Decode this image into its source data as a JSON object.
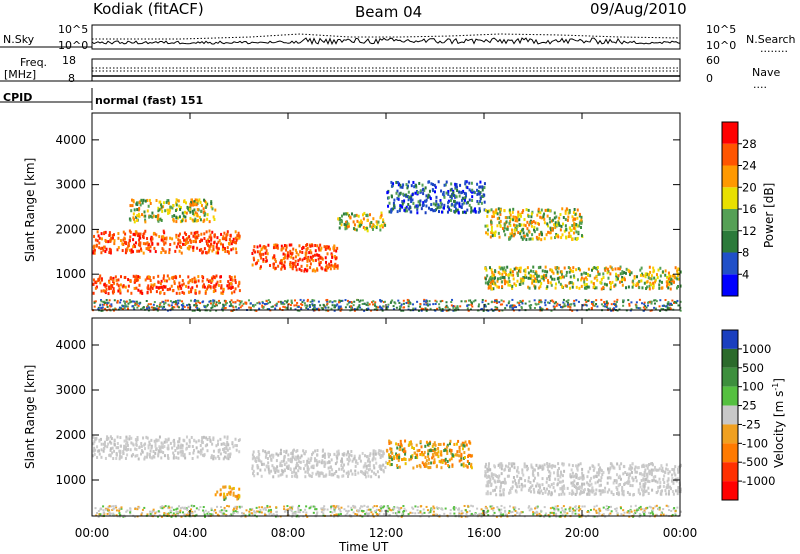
{
  "header": {
    "station": "Kodiak (fitACF)",
    "beam": "Beam 04",
    "date": "09/Aug/2010"
  },
  "noise_panel": {
    "left_label": "N.Sky",
    "right_label": "N.Search",
    "ticks_left": [
      "10^5",
      "10^0"
    ],
    "ticks_right": [
      "10^5",
      "10^0"
    ],
    "right_legend_symbol": "........"
  },
  "freq_panel": {
    "left_label_1": "Freq.",
    "left_label_2": "[MHz]",
    "right_label": "Nave",
    "ticks_left": [
      "18",
      "8"
    ],
    "ticks_right": [
      "60",
      "0"
    ],
    "right_legend_symbol": "...."
  },
  "cpid": {
    "label": "CPID",
    "value": "normal (fast) 151"
  },
  "x_axis": {
    "label": "Time UT",
    "ticks": [
      "00:00",
      "04:00",
      "08:00",
      "12:00",
      "16:00",
      "20:00",
      "00:00"
    ]
  },
  "chart_data": [
    {
      "type": "heatmap",
      "name": "power",
      "ylabel": "Slant Range [km]",
      "yticks": [
        "1000",
        "2000",
        "3000",
        "4000"
      ],
      "ylim": [
        200,
        4600
      ],
      "xlim_hours": [
        0,
        24
      ],
      "colorbar": {
        "label": "Power [dB]",
        "ticks": [
          "4",
          "8",
          "12",
          "16",
          "20",
          "24",
          "28"
        ],
        "range": [
          0,
          32
        ],
        "colors": [
          "#0000ff",
          "#2050c8",
          "#2b7a3a",
          "#55a055",
          "#e8e000",
          "#ff9900",
          "#ff5500",
          "#ff0000"
        ]
      },
      "echo_regions": [
        {
          "t0": 0.0,
          "t1": 6.0,
          "r0": 1500,
          "r1": 2000,
          "level": "high"
        },
        {
          "t0": 0.0,
          "t1": 6.0,
          "r0": 600,
          "r1": 1000,
          "level": "high"
        },
        {
          "t0": 1.5,
          "t1": 5.0,
          "r0": 2200,
          "r1": 2700,
          "level": "medium"
        },
        {
          "t0": 6.5,
          "t1": 10.0,
          "r0": 1100,
          "r1": 1700,
          "level": "high"
        },
        {
          "t0": 10.0,
          "t1": 12.0,
          "r0": 2000,
          "r1": 2400,
          "level": "medium"
        },
        {
          "t0": 12.0,
          "t1": 16.0,
          "r0": 2400,
          "r1": 3100,
          "level": "low"
        },
        {
          "t0": 16.0,
          "t1": 24.0,
          "r0": 700,
          "r1": 1200,
          "level": "medium"
        },
        {
          "t0": 16.0,
          "t1": 20.0,
          "r0": 1800,
          "r1": 2500,
          "level": "medium"
        }
      ]
    },
    {
      "type": "heatmap",
      "name": "velocity",
      "ylabel": "Slant Range [km]",
      "yticks": [
        "1000",
        "2000",
        "3000",
        "4000"
      ],
      "ylim": [
        200,
        4600
      ],
      "xlim_hours": [
        0,
        24
      ],
      "colorbar": {
        "label": "Velocity [m s",
        "label_sup": "-1",
        "label_end": "]",
        "ticks": [
          "1000",
          "500",
          "100",
          "25",
          "-25",
          "-100",
          "-500",
          "-1000"
        ],
        "colors": [
          "#1a3fbf",
          "#2b6a2b",
          "#3d8f3d",
          "#55c040",
          "#c8c8c8",
          "#f0a020",
          "#ff7a00",
          "#ff3000",
          "#ff0000"
        ]
      },
      "echo_regions": [
        {
          "t0": 0.0,
          "t1": 6.0,
          "r0": 1500,
          "r1": 2000,
          "level": "ground"
        },
        {
          "t0": 5.0,
          "t1": 6.0,
          "r0": 600,
          "r1": 900,
          "level": "negative"
        },
        {
          "t0": 6.5,
          "t1": 12.0,
          "r0": 1100,
          "r1": 1700,
          "level": "ground"
        },
        {
          "t0": 12.0,
          "t1": 15.5,
          "r0": 1300,
          "r1": 1900,
          "level": "negative"
        },
        {
          "t0": 16.0,
          "t1": 24.0,
          "r0": 700,
          "r1": 1400,
          "level": "ground"
        }
      ]
    }
  ]
}
